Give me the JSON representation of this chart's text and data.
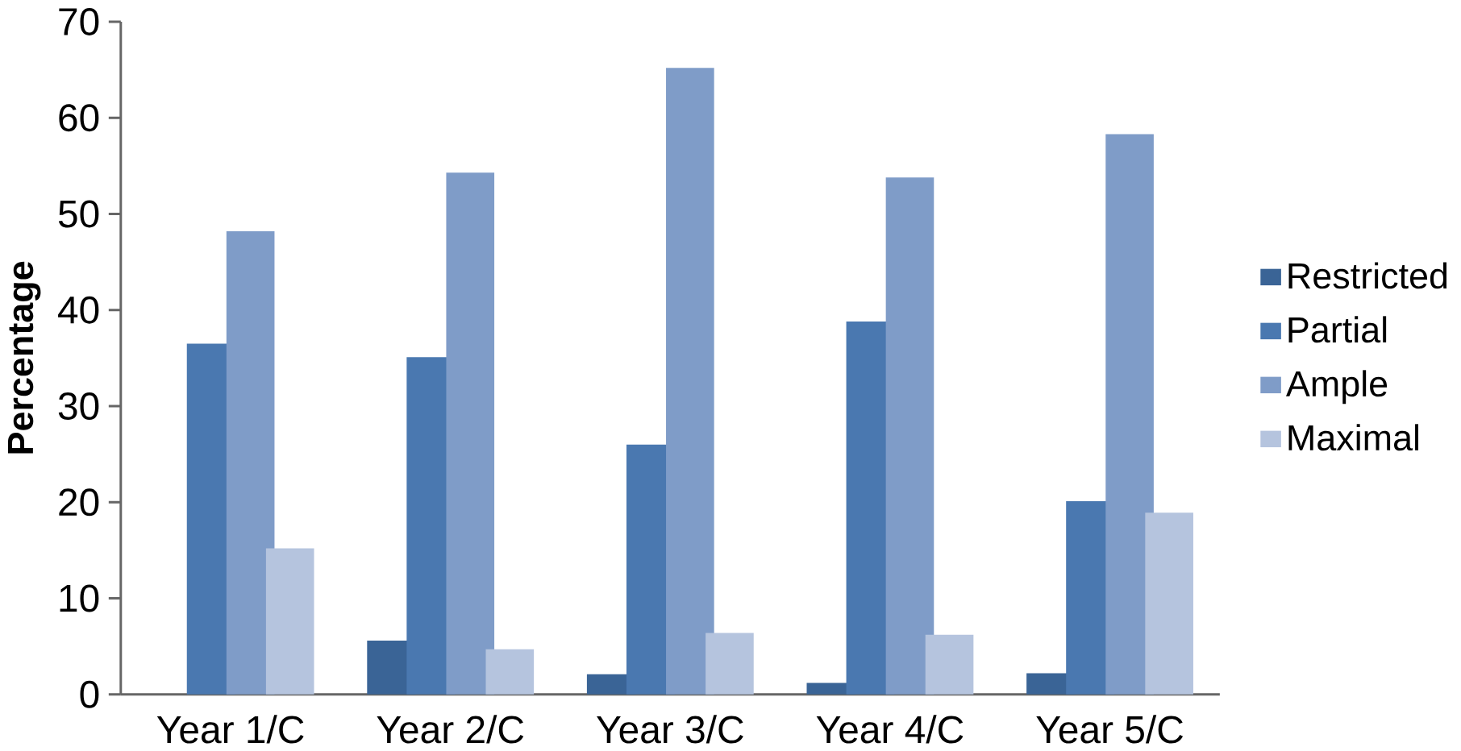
{
  "chart_data": {
    "type": "bar",
    "ylabel": "Percentage",
    "categories": [
      "Year 1/C",
      "Year 2/C",
      "Year 3/C",
      "Year 4/C",
      "Year 5/C"
    ],
    "series": [
      {
        "name": "Restricted",
        "color": "#3a6496",
        "values": [
          0,
          5.6,
          2.1,
          1.2,
          2.2
        ]
      },
      {
        "name": "Partial",
        "color": "#4a78b0",
        "values": [
          36.5,
          35.1,
          26.0,
          38.8,
          20.1
        ]
      },
      {
        "name": "Ample",
        "color": "#7f9cc8",
        "values": [
          48.2,
          54.3,
          65.2,
          53.8,
          58.3
        ]
      },
      {
        "name": "Maximal",
        "color": "#b5c4de",
        "values": [
          15.2,
          4.7,
          6.4,
          6.2,
          18.9
        ]
      }
    ],
    "ylim": [
      0,
      70
    ],
    "yticks": [
      0,
      10,
      20,
      30,
      40,
      50,
      60,
      70
    ],
    "grid": false,
    "legend": "right"
  }
}
